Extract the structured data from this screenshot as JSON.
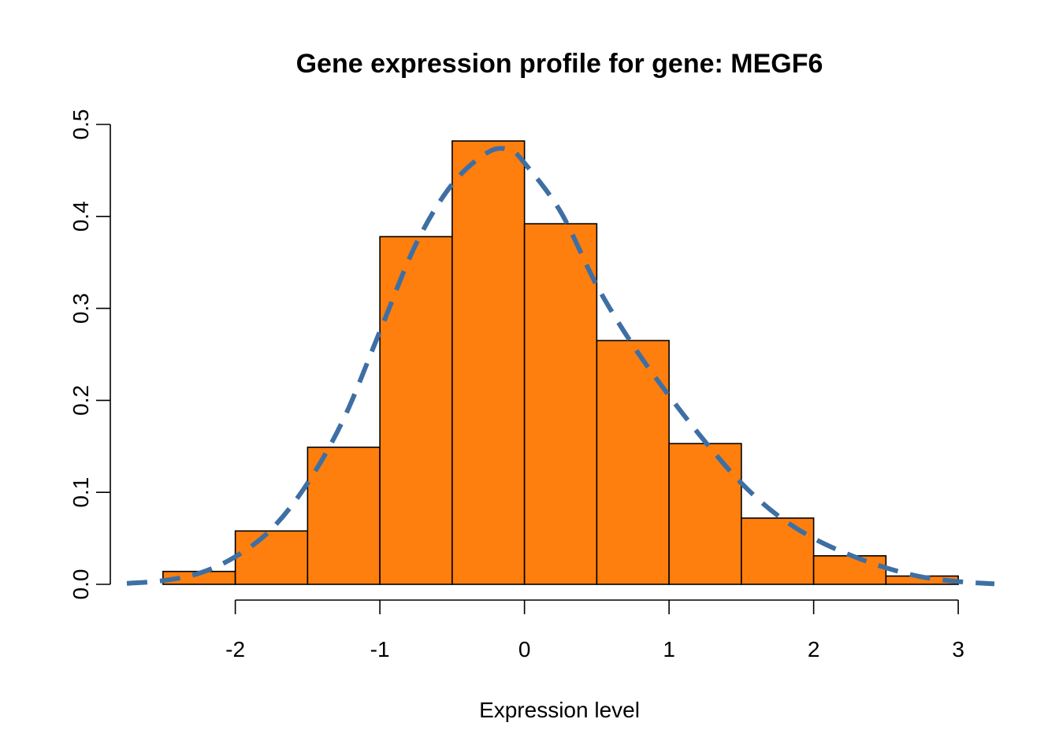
{
  "chart_data": {
    "type": "bar",
    "subtype": "histogram",
    "title": "Gene expression profile for gene: MEGF6",
    "xlabel": "Expression level",
    "ylabel": "",
    "xlim": [
      -2.75,
      3.25
    ],
    "ylim": [
      0,
      0.5
    ],
    "x_ticks": [
      -2,
      -1,
      0,
      1,
      2,
      3
    ],
    "x_tick_labels": [
      "-2",
      "-1",
      "0",
      "1",
      "2",
      "3"
    ],
    "y_ticks": [
      0,
      0.1,
      0.2,
      0.3,
      0.4,
      0.5
    ],
    "y_tick_labels": [
      "0.0",
      "0.1",
      "0.2",
      "0.3",
      "0.4",
      "0.5"
    ],
    "grid": false,
    "legend": "none",
    "bins": [
      {
        "x0": -2.5,
        "x1": -2.0,
        "density": 0.014
      },
      {
        "x0": -2.0,
        "x1": -1.5,
        "density": 0.058
      },
      {
        "x0": -1.5,
        "x1": -1.0,
        "density": 0.149
      },
      {
        "x0": -1.0,
        "x1": -0.5,
        "density": 0.378
      },
      {
        "x0": -0.5,
        "x1": 0.0,
        "density": 0.482
      },
      {
        "x0": 0.0,
        "x1": 0.5,
        "density": 0.392
      },
      {
        "x0": 0.5,
        "x1": 1.0,
        "density": 0.265
      },
      {
        "x0": 1.0,
        "x1": 1.5,
        "density": 0.153
      },
      {
        "x0": 1.5,
        "x1": 2.0,
        "density": 0.072
      },
      {
        "x0": 2.0,
        "x1": 2.5,
        "density": 0.031
      },
      {
        "x0": 2.5,
        "x1": 3.0,
        "density": 0.009
      }
    ],
    "density_curve": {
      "style": "dashed",
      "x": [
        -2.75,
        -2.5,
        -2.25,
        -2.0,
        -1.75,
        -1.5,
        -1.25,
        -1.0,
        -0.75,
        -0.5,
        -0.25,
        -0.1,
        0.0,
        0.25,
        0.5,
        0.75,
        1.0,
        1.25,
        1.5,
        1.75,
        2.0,
        2.25,
        2.5,
        2.75,
        3.0,
        3.25
      ],
      "y": [
        0.001,
        0.004,
        0.012,
        0.03,
        0.06,
        0.11,
        0.18,
        0.275,
        0.37,
        0.435,
        0.47,
        0.472,
        0.458,
        0.405,
        0.325,
        0.26,
        0.205,
        0.155,
        0.11,
        0.075,
        0.05,
        0.032,
        0.018,
        0.008,
        0.003,
        0.0005
      ]
    },
    "colors": {
      "bar_fill": "#FF7F0E",
      "bar_border": "#000000",
      "curve": "#3E6FA4"
    }
  }
}
